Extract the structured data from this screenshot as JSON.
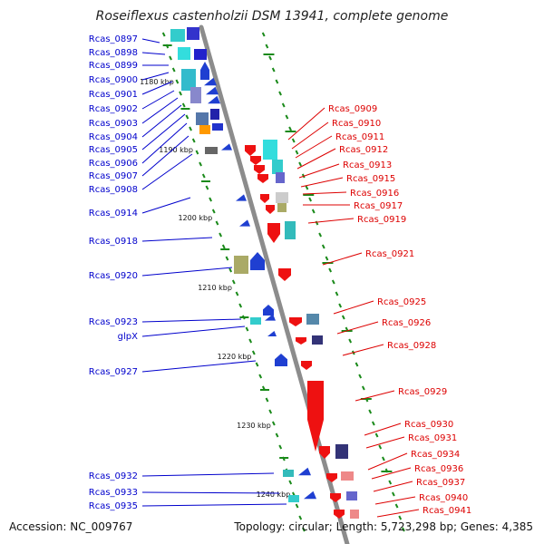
{
  "title": "Roseiflexus castenholzii DSM 13941, complete genome",
  "footer": {
    "accession": "Accession: NC_009767",
    "summary": "Topology: circular; Length: 5,723,298 bp; Genes: 4,385"
  },
  "colors": {
    "forward_label": "#0000cc",
    "reverse_label": "#dd0000",
    "axis": "#8c8c8c",
    "tick": "#1a8a1a"
  },
  "scale_labels": [
    {
      "text": "1180 kbp"
    },
    {
      "text": "1190 kbp"
    },
    {
      "text": "1200 kbp"
    },
    {
      "text": "1210 kbp"
    },
    {
      "text": "1220 kbp"
    },
    {
      "text": "1230 kbp"
    },
    {
      "text": "1240 kbp"
    }
  ],
  "forward_genes": [
    "Rcas_0897",
    "Rcas_0898",
    "Rcas_0899",
    "Rcas_0900",
    "Rcas_0901",
    "Rcas_0902",
    "Rcas_0903",
    "Rcas_0904",
    "Rcas_0905",
    "Rcas_0906",
    "Rcas_0907",
    "Rcas_0908",
    "Rcas_0914",
    "Rcas_0918",
    "Rcas_0920",
    "Rcas_0923",
    "glpX",
    "Rcas_0927",
    "Rcas_0932",
    "Rcas_0933",
    "Rcas_0935"
  ],
  "reverse_genes": [
    "Rcas_0909",
    "Rcas_0910",
    "Rcas_0911",
    "Rcas_0912",
    "Rcas_0913",
    "Rcas_0915",
    "Rcas_0916",
    "Rcas_0917",
    "Rcas_0919",
    "Rcas_0921",
    "Rcas_0925",
    "Rcas_0926",
    "Rcas_0928",
    "Rcas_0929",
    "Rcas_0930",
    "Rcas_0931",
    "Rcas_0934",
    "Rcas_0936",
    "Rcas_0937",
    "Rcas_0940",
    "Rcas_0941"
  ]
}
